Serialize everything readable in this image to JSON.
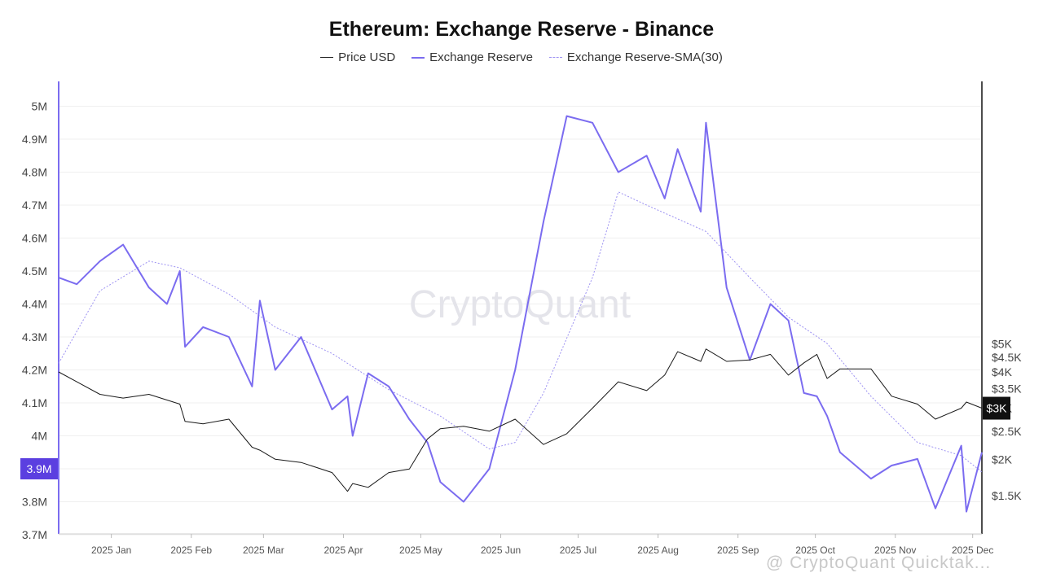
{
  "chart_data": {
    "type": "line",
    "title": "Ethereum: Exchange Reserve - Binance",
    "legend": [
      "Price USD",
      "Exchange Reserve",
      "Exchange Reserve-SMA(30)"
    ],
    "legend_position": "top-center",
    "x_tick_labels": [
      "2025 Jan",
      "2025 Feb",
      "2025 Mar",
      "2025 Apr",
      "2025 May",
      "2025 Jun",
      "2025 Jul",
      "2025 Aug",
      "2025 Sep",
      "2025 Oct",
      "2025 Nov",
      "2025 Dec"
    ],
    "x_range": [
      "2024-12-16",
      "2025-12-09"
    ],
    "y_left": {
      "ticks": [
        "3.7M",
        "3.8M",
        "3.9M",
        "4M",
        "4.1M",
        "4.2M",
        "4.3M",
        "4.4M",
        "4.5M",
        "4.6M",
        "4.7M",
        "4.8M",
        "4.9M",
        "5M"
      ],
      "range": [
        3700000,
        5050000
      ]
    },
    "y_right": {
      "ticks": [
        "$1.5K",
        "$2K",
        "$2.5K",
        "$3K",
        "$3.5K",
        "$4K",
        "$4.5K",
        "$5K"
      ],
      "scale": "log",
      "range": [
        1400,
        5000
      ]
    },
    "current_labels": {
      "reserve": "3.9M",
      "price": "$3K"
    },
    "grid": "horizontal",
    "colors": {
      "price": "#1a1a1a",
      "reserve": "#7b6cf0",
      "sma": "#9d92f2",
      "reserve_badge": "#5b3fe0",
      "price_badge": "#111111"
    },
    "series": [
      {
        "name": "Price USD",
        "axis": "right",
        "x": [
          "2024-12-16",
          "2024-12-23",
          "2025-01-01",
          "2025-01-10",
          "2025-01-20",
          "2025-01-27",
          "2025-02-01",
          "2025-02-03",
          "2025-02-10",
          "2025-02-20",
          "2025-03-01",
          "2025-03-04",
          "2025-03-10",
          "2025-03-20",
          "2025-04-01",
          "2025-04-07",
          "2025-04-09",
          "2025-04-15",
          "2025-04-23",
          "2025-05-01",
          "2025-05-08",
          "2025-05-13",
          "2025-05-22",
          "2025-06-01",
          "2025-06-11",
          "2025-06-22",
          "2025-07-01",
          "2025-07-11",
          "2025-07-21",
          "2025-08-01",
          "2025-08-08",
          "2025-08-13",
          "2025-08-22",
          "2025-08-24",
          "2025-09-01",
          "2025-09-10",
          "2025-09-18",
          "2025-09-25",
          "2025-10-01",
          "2025-10-06",
          "2025-10-10",
          "2025-10-15",
          "2025-10-27",
          "2025-11-04",
          "2025-11-14",
          "2025-11-21",
          "2025-12-01",
          "2025-12-03",
          "2025-12-09"
        ],
        "values": [
          4000,
          3700,
          3350,
          3250,
          3350,
          3200,
          3100,
          2700,
          2650,
          2750,
          2200,
          2150,
          2000,
          1950,
          1800,
          1550,
          1650,
          1600,
          1800,
          1850,
          2350,
          2550,
          2600,
          2500,
          2750,
          2250,
          2450,
          3000,
          3700,
          3450,
          3900,
          4700,
          4350,
          4800,
          4350,
          4400,
          4600,
          3900,
          4300,
          4600,
          3800,
          4100,
          4100,
          3300,
          3100,
          2750,
          3000,
          3150,
          3000
        ]
      },
      {
        "name": "Exchange Reserve",
        "axis": "left",
        "x": [
          "2024-12-16",
          "2024-12-23",
          "2025-01-01",
          "2025-01-10",
          "2025-01-20",
          "2025-01-27",
          "2025-02-01",
          "2025-02-03",
          "2025-02-10",
          "2025-02-20",
          "2025-03-01",
          "2025-03-04",
          "2025-03-10",
          "2025-03-20",
          "2025-04-01",
          "2025-04-07",
          "2025-04-09",
          "2025-04-15",
          "2025-04-23",
          "2025-05-01",
          "2025-05-08",
          "2025-05-13",
          "2025-05-22",
          "2025-06-01",
          "2025-06-11",
          "2025-06-22",
          "2025-07-01",
          "2025-07-11",
          "2025-07-21",
          "2025-08-01",
          "2025-08-08",
          "2025-08-13",
          "2025-08-22",
          "2025-08-24",
          "2025-09-01",
          "2025-09-10",
          "2025-09-18",
          "2025-09-25",
          "2025-10-01",
          "2025-10-06",
          "2025-10-10",
          "2025-10-15",
          "2025-10-27",
          "2025-11-04",
          "2025-11-14",
          "2025-11-21",
          "2025-12-01",
          "2025-12-03",
          "2025-12-09"
        ],
        "values": [
          4480000,
          4460000,
          4530000,
          4580000,
          4450000,
          4400000,
          4500000,
          4270000,
          4330000,
          4300000,
          4150000,
          4410000,
          4200000,
          4300000,
          4080000,
          4120000,
          4000000,
          4190000,
          4150000,
          4050000,
          3980000,
          3860000,
          3800000,
          3900000,
          4200000,
          4650000,
          4970000,
          4950000,
          4800000,
          4850000,
          4720000,
          4870000,
          4680000,
          4950000,
          4450000,
          4230000,
          4400000,
          4350000,
          4130000,
          4120000,
          4060000,
          3950000,
          3870000,
          3910000,
          3930000,
          3780000,
          3970000,
          3770000,
          3950000
        ]
      },
      {
        "name": "Exchange Reserve-SMA(30)",
        "axis": "left",
        "x": [
          "2024-12-16",
          "2025-01-01",
          "2025-01-20",
          "2025-02-01",
          "2025-02-20",
          "2025-03-10",
          "2025-04-01",
          "2025-04-23",
          "2025-05-13",
          "2025-06-01",
          "2025-06-11",
          "2025-06-22",
          "2025-07-11",
          "2025-07-21",
          "2025-08-01",
          "2025-08-24",
          "2025-09-10",
          "2025-09-25",
          "2025-10-10",
          "2025-10-27",
          "2025-11-14",
          "2025-12-01",
          "2025-12-09"
        ],
        "values": [
          4220000,
          4440000,
          4530000,
          4510000,
          4430000,
          4330000,
          4250000,
          4140000,
          4060000,
          3960000,
          3980000,
          4130000,
          4480000,
          4740000,
          4700000,
          4620000,
          4480000,
          4360000,
          4280000,
          4120000,
          3980000,
          3940000,
          3890000
        ]
      }
    ]
  },
  "watermark": "CryptoQuant",
  "footer_watermark": "@ CryptoQuant Quicktak..."
}
